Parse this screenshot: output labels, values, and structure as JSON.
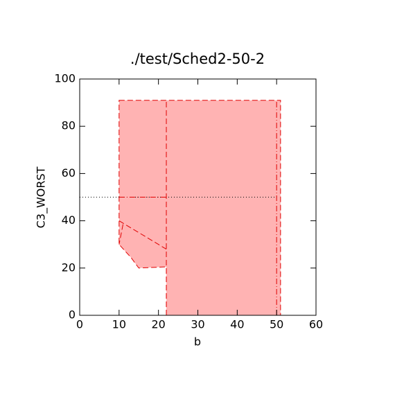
{
  "chart_data": {
    "type": "region",
    "title": "./test/Sched2-50-2",
    "xlabel": "b",
    "ylabel": "C3_WORST",
    "xlim": [
      0,
      60
    ],
    "xticks": [
      0,
      10,
      20,
      30,
      40,
      50,
      60
    ],
    "ylim": [
      0,
      100
    ],
    "yticks": [
      0,
      20,
      40,
      60,
      80,
      100
    ],
    "series": [
      {
        "x": [
          10,
          51,
          51,
          22,
          22,
          15,
          13,
          10
        ],
        "y": [
          91,
          91,
          0,
          0,
          20.5,
          20,
          24.5,
          30
        ],
        "color": "#ffb3b3",
        "edge": "#e00000",
        "style": "dashed"
      },
      {
        "x": [
          22,
          22
        ],
        "y": [
          0,
          91
        ],
        "color": "#e00000",
        "style": "dashed"
      },
      {
        "x": [
          50,
          50
        ],
        "y": [
          0,
          91
        ],
        "color": "#e00000",
        "style": "dashdot"
      },
      {
        "x": [
          10,
          22
        ],
        "y": [
          40,
          28
        ],
        "color": "#e00000",
        "style": "dashed"
      },
      {
        "x": [
          11,
          10
        ],
        "y": [
          38.5,
          30
        ],
        "color": "#e00000",
        "style": "dashed"
      },
      {
        "x": [
          0,
          50
        ],
        "y": [
          50,
          50
        ],
        "color": "#000000",
        "style": "dotted"
      },
      {
        "x": [
          10,
          22
        ],
        "y": [
          50,
          50
        ],
        "color": "#e00000",
        "style": "dashdot"
      }
    ]
  }
}
